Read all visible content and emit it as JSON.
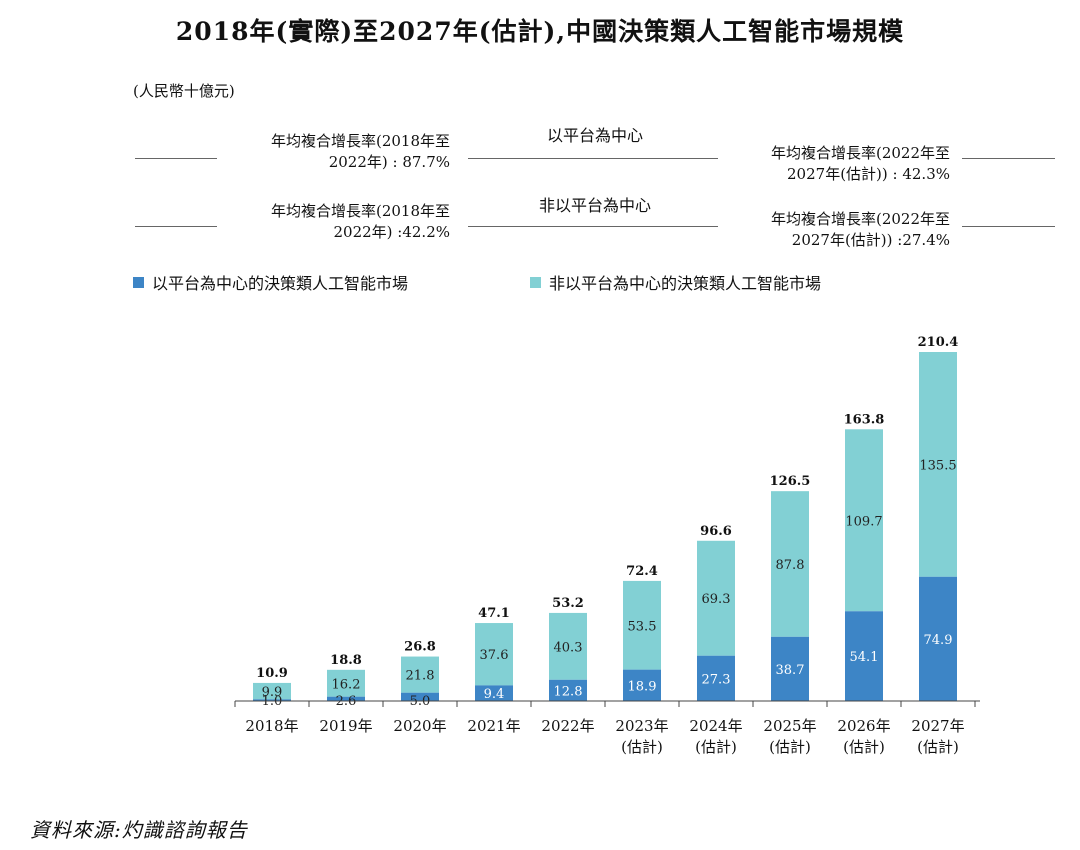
{
  "title": "2018年(實際)至2027年(估計),中國決策類人工智能市場規模",
  "unit": "(人民幣十億元)",
  "cagr": {
    "row1_left": [
      "年均複合增長率(2018年至",
      "2022年) : 87.7%"
    ],
    "row1_mid": "以平台為中心",
    "row1_right": [
      "年均複合增長率(2022年至",
      "2027年(估計)) : 42.3%"
    ],
    "row2_left": [
      "年均複合增長率(2018年至",
      "2022年) :42.2%"
    ],
    "row2_mid": "非以平台為中心",
    "row2_right": [
      "年均複合增長率(2022年至",
      "2027年(估計)) :27.4%"
    ]
  },
  "colors": {
    "platform": "#3d85c6",
    "non_platform": "#82d0d4",
    "axis": "#444444"
  },
  "source": "資料來源:灼識諮詢報告",
  "chart_data": {
    "type": "bar",
    "stacked": true,
    "categories": [
      "2018年",
      "2019年",
      "2020年",
      "2021年",
      "2022年",
      "2023年(估計)",
      "2024年(估計)",
      "2025年(估計)",
      "2026年(估計)",
      "2027年(估計)"
    ],
    "category_lines": [
      [
        "2018年"
      ],
      [
        "2019年"
      ],
      [
        "2020年"
      ],
      [
        "2021年"
      ],
      [
        "2022年"
      ],
      [
        "2023年",
        "(估計)"
      ],
      [
        "2024年",
        "(估計)"
      ],
      [
        "2025年",
        "(估計)"
      ],
      [
        "2026年",
        "(估計)"
      ],
      [
        "2027年",
        "(估計)"
      ]
    ],
    "series": [
      {
        "name": "以平台為中心的決策類人工智能市場",
        "values": [
          1.0,
          2.6,
          5.0,
          9.4,
          12.8,
          18.9,
          27.3,
          38.7,
          54.1,
          74.9
        ]
      },
      {
        "name": "非以平台為中心的決策類人工智能市場",
        "values": [
          9.9,
          16.2,
          21.8,
          37.6,
          40.3,
          53.5,
          69.3,
          87.8,
          109.7,
          135.5
        ]
      }
    ],
    "totals": [
      "10.9",
      "18.8",
      "26.8",
      "47.1",
      "53.2",
      "72.4",
      "96.6",
      "126.5",
      "163.8",
      "210.4"
    ],
    "ylim": [
      0,
      210.4
    ],
    "legend": "top-left",
    "grid": false
  }
}
